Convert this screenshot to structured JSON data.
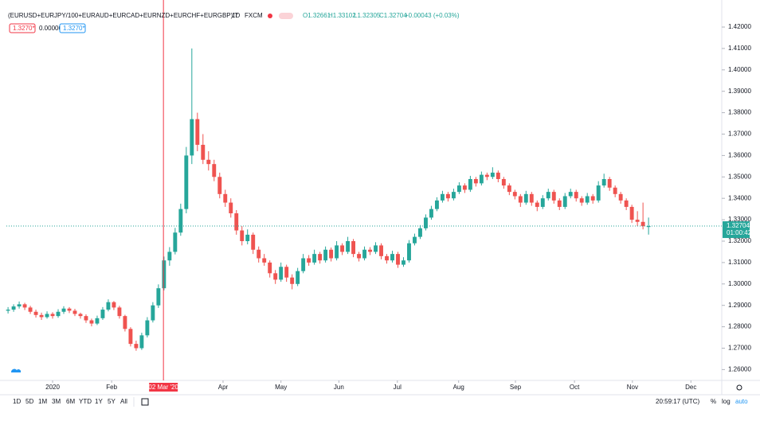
{
  "chart_data": {
    "type": "candlestick",
    "up_color": "#26a69a",
    "down_color": "#ef5350",
    "ohlc": [
      [
        1.2875,
        1.2892,
        1.2862,
        1.288
      ],
      [
        1.288,
        1.2905,
        1.287,
        1.2895
      ],
      [
        1.2895,
        1.2918,
        1.2885,
        1.2905
      ],
      [
        1.2905,
        1.2912,
        1.2878,
        1.289
      ],
      [
        1.289,
        1.2898,
        1.286,
        1.287
      ],
      [
        1.287,
        1.288,
        1.2843,
        1.2855
      ],
      [
        1.2855,
        1.2866,
        1.2832,
        1.2845
      ],
      [
        1.2845,
        1.2872,
        1.2838,
        1.286
      ],
      [
        1.286,
        1.2868,
        1.2838,
        1.285
      ],
      [
        1.285,
        1.2882,
        1.2842,
        1.287
      ],
      [
        1.287,
        1.2896,
        1.286,
        1.2885
      ],
      [
        1.2885,
        1.2892,
        1.2864,
        1.2875
      ],
      [
        1.2875,
        1.2884,
        1.285,
        1.286
      ],
      [
        1.286,
        1.2866,
        1.2838,
        1.285
      ],
      [
        1.285,
        1.2858,
        1.2818,
        1.283
      ],
      [
        1.283,
        1.2838,
        1.2802,
        1.2815
      ],
      [
        1.2815,
        1.2852,
        1.2808,
        1.284
      ],
      [
        1.284,
        1.2892,
        1.2832,
        1.288
      ],
      [
        1.288,
        1.2928,
        1.2872,
        1.2915
      ],
      [
        1.2915,
        1.292,
        1.2878,
        1.289
      ],
      [
        1.289,
        1.2898,
        1.2838,
        1.285
      ],
      [
        1.285,
        1.2856,
        1.2778,
        1.279
      ],
      [
        1.279,
        1.2798,
        1.2708,
        1.272
      ],
      [
        1.272,
        1.2735,
        1.2688,
        1.27
      ],
      [
        1.27,
        1.2772,
        1.2692,
        1.276
      ],
      [
        1.276,
        1.2845,
        1.275,
        1.283
      ],
      [
        1.283,
        1.2915,
        1.282,
        1.29
      ],
      [
        1.29,
        1.2998,
        1.2888,
        1.298
      ],
      [
        1.298,
        1.3128,
        1.297,
        1.311
      ],
      [
        1.311,
        1.3172,
        1.3085,
        1.315
      ],
      [
        1.315,
        1.3262,
        1.3138,
        1.324
      ],
      [
        1.324,
        1.3375,
        1.3225,
        1.335
      ],
      [
        1.335,
        1.364,
        1.333,
        1.36
      ],
      [
        1.36,
        1.41,
        1.356,
        1.377
      ],
      [
        1.377,
        1.38,
        1.362,
        1.365
      ],
      [
        1.365,
        1.37,
        1.356,
        1.358
      ],
      [
        1.358,
        1.362,
        1.353,
        1.356
      ],
      [
        1.356,
        1.358,
        1.348,
        1.35
      ],
      [
        1.35,
        1.352,
        1.34,
        1.342
      ],
      [
        1.342,
        1.344,
        1.336,
        1.338
      ],
      [
        1.338,
        1.34,
        1.331,
        1.333
      ],
      [
        1.333,
        1.3345,
        1.323,
        1.325
      ],
      [
        1.325,
        1.327,
        1.318,
        1.32
      ],
      [
        1.32,
        1.3255,
        1.3185,
        1.323
      ],
      [
        1.323,
        1.324,
        1.314,
        1.316
      ],
      [
        1.316,
        1.3175,
        1.31,
        1.312
      ],
      [
        1.312,
        1.314,
        1.3085,
        1.31
      ],
      [
        1.31,
        1.311,
        1.303,
        1.305
      ],
      [
        1.305,
        1.3065,
        1.3,
        1.302
      ],
      [
        1.302,
        1.31,
        1.301,
        1.308
      ],
      [
        1.308,
        1.309,
        1.301,
        1.303
      ],
      [
        1.303,
        1.3045,
        1.2975,
        1.3
      ],
      [
        1.3,
        1.3075,
        1.299,
        1.306
      ],
      [
        1.306,
        1.314,
        1.305,
        1.312
      ],
      [
        1.312,
        1.3135,
        1.3085,
        1.31
      ],
      [
        1.31,
        1.316,
        1.309,
        1.314
      ],
      [
        1.314,
        1.315,
        1.3095,
        1.311
      ],
      [
        1.311,
        1.3175,
        1.31,
        1.316
      ],
      [
        1.316,
        1.317,
        1.3105,
        1.312
      ],
      [
        1.312,
        1.32,
        1.311,
        1.318
      ],
      [
        1.318,
        1.319,
        1.3135,
        1.315
      ],
      [
        1.315,
        1.322,
        1.314,
        1.32
      ],
      [
        1.32,
        1.321,
        1.3125,
        1.314
      ],
      [
        1.314,
        1.315,
        1.3105,
        1.312
      ],
      [
        1.312,
        1.3175,
        1.311,
        1.316
      ],
      [
        1.316,
        1.3172,
        1.3135,
        1.315
      ],
      [
        1.315,
        1.3195,
        1.314,
        1.318
      ],
      [
        1.318,
        1.319,
        1.3115,
        1.313
      ],
      [
        1.313,
        1.314,
        1.3095,
        1.311
      ],
      [
        1.311,
        1.3155,
        1.31,
        1.314
      ],
      [
        1.314,
        1.315,
        1.3075,
        1.309
      ],
      [
        1.309,
        1.3125,
        1.308,
        1.311
      ],
      [
        1.311,
        1.3205,
        1.31,
        1.319
      ],
      [
        1.319,
        1.3235,
        1.318,
        1.322
      ],
      [
        1.322,
        1.3275,
        1.321,
        1.326
      ],
      [
        1.326,
        1.3325,
        1.325,
        1.331
      ],
      [
        1.331,
        1.3365,
        1.33,
        1.335
      ],
      [
        1.335,
        1.3405,
        1.334,
        1.339
      ],
      [
        1.339,
        1.3435,
        1.338,
        1.342
      ],
      [
        1.342,
        1.343,
        1.3385,
        1.34
      ],
      [
        1.34,
        1.3445,
        1.339,
        1.343
      ],
      [
        1.343,
        1.3475,
        1.342,
        1.346
      ],
      [
        1.346,
        1.347,
        1.3425,
        1.344
      ],
      [
        1.344,
        1.3505,
        1.343,
        1.349
      ],
      [
        1.349,
        1.35,
        1.3455,
        1.347
      ],
      [
        1.347,
        1.3525,
        1.346,
        1.351
      ],
      [
        1.351,
        1.352,
        1.3485,
        1.35
      ],
      [
        1.35,
        1.3545,
        1.349,
        1.352
      ],
      [
        1.352,
        1.353,
        1.3475,
        1.349
      ],
      [
        1.349,
        1.35,
        1.3445,
        1.346
      ],
      [
        1.346,
        1.347,
        1.3415,
        1.343
      ],
      [
        1.343,
        1.344,
        1.3395,
        1.341
      ],
      [
        1.341,
        1.342,
        1.336,
        1.338
      ],
      [
        1.338,
        1.3435,
        1.337,
        1.342
      ],
      [
        1.342,
        1.343,
        1.3365,
        1.338
      ],
      [
        1.338,
        1.339,
        1.334,
        1.336
      ],
      [
        1.336,
        1.3415,
        1.335,
        1.34
      ],
      [
        1.34,
        1.3445,
        1.339,
        1.343
      ],
      [
        1.343,
        1.344,
        1.3375,
        1.339
      ],
      [
        1.339,
        1.34,
        1.3345,
        1.336
      ],
      [
        1.336,
        1.3425,
        1.335,
        1.341
      ],
      [
        1.341,
        1.3445,
        1.34,
        1.343
      ],
      [
        1.343,
        1.344,
        1.3385,
        1.34
      ],
      [
        1.34,
        1.341,
        1.3365,
        1.338
      ],
      [
        1.338,
        1.3425,
        1.337,
        1.341
      ],
      [
        1.341,
        1.342,
        1.3375,
        1.339
      ],
      [
        1.339,
        1.348,
        1.338,
        1.346
      ],
      [
        1.346,
        1.3515,
        1.345,
        1.349
      ],
      [
        1.349,
        1.35,
        1.3435,
        1.345
      ],
      [
        1.345,
        1.346,
        1.3405,
        1.342
      ],
      [
        1.342,
        1.343,
        1.3375,
        1.339
      ],
      [
        1.339,
        1.34,
        1.3345,
        1.336
      ],
      [
        1.336,
        1.337,
        1.3285,
        1.33
      ],
      [
        1.33,
        1.334,
        1.327,
        1.329
      ],
      [
        1.329,
        1.338,
        1.3255,
        1.327
      ],
      [
        1.32661,
        1.33102,
        1.32305,
        1.32704
      ]
    ],
    "xlim": [
      -0.3,
      128
    ],
    "xticks": [
      {
        "value": 8,
        "label": "2020"
      },
      {
        "value": 18.6,
        "label": "Feb"
      },
      {
        "value": 38.6,
        "label": "Apr"
      },
      {
        "value": 49,
        "label": "May"
      },
      {
        "value": 59.4,
        "label": "Jun"
      },
      {
        "value": 69.9,
        "label": "Jul"
      },
      {
        "value": 80.9,
        "label": "Aug"
      },
      {
        "value": 91.1,
        "label": "Sep"
      },
      {
        "value": 101.7,
        "label": "Oct"
      },
      {
        "value": 112.1,
        "label": "Nov"
      },
      {
        "value": 122.6,
        "label": "Dec"
      }
    ],
    "crosshair": {
      "value": 27.9,
      "label": "02 Mar '20"
    },
    "ylim": [
      1.25494,
      1.43264
    ],
    "yticks": [
      {
        "value": 1.26,
        "label": "1.26000"
      },
      {
        "value": 1.27,
        "label": "1.27000"
      },
      {
        "value": 1.28,
        "label": "1.28000"
      },
      {
        "value": 1.29,
        "label": "1.29000"
      },
      {
        "value": 1.3,
        "label": "1.30000"
      },
      {
        "value": 1.31,
        "label": "1.31000"
      },
      {
        "value": 1.32,
        "label": "1.32000"
      },
      {
        "value": 1.33,
        "label": "1.33000"
      },
      {
        "value": 1.34,
        "label": "1.34000"
      },
      {
        "value": 1.35,
        "label": "1.35000"
      },
      {
        "value": 1.36,
        "label": "1.36000"
      },
      {
        "value": 1.37,
        "label": "1.37000"
      },
      {
        "value": 1.38,
        "label": "1.38000"
      },
      {
        "value": 1.39,
        "label": "1.39000"
      },
      {
        "value": 1.4,
        "label": "1.40000"
      },
      {
        "value": 1.41,
        "label": "1.41000"
      },
      {
        "value": 1.42,
        "label": "1.42000"
      }
    ],
    "last_price": 1.32704,
    "countdown": "01:00:42",
    "last_color": "#26a69a",
    "crosshair_color": "#f23645"
  },
  "header": {
    "symbol": "(EURUSD+EURJPY/100+EURAUD+EURCAD+EURNZD+EURCHF+EURGBP)/7",
    "interval": "1D",
    "source": "FXCM",
    "legend": [
      "O1.32661",
      "H1.33102",
      "L1.32305",
      "C1.32704",
      "+0.00043 (+0.03%)"
    ],
    "sell": "1.3270*",
    "spread": "0.00000",
    "buy": "1.3270*"
  },
  "toolbar": {
    "ranges": [
      "1D",
      "5D",
      "1M",
      "3M",
      "6M",
      "YTD",
      "1Y",
      "5Y",
      "All"
    ],
    "clock": "20:59:17 (UTC)",
    "percent": "%",
    "log": "log",
    "auto": "auto"
  }
}
